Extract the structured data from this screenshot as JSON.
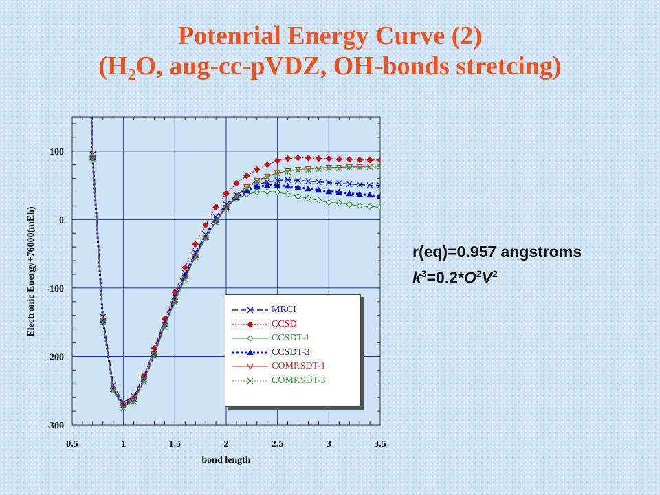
{
  "slide": {
    "title_line1": "Potenrial Energy Curve (2)",
    "title_line2_prefix": "(H",
    "title_line2_sub": "2",
    "title_line2_suffix": "O, aug-cc-pVDZ, OH-bonds stretcing)",
    "note_line1": "r(eq)=0.957 angstroms",
    "note_k": "k",
    "note_k_sup": "3",
    "note_eq": "=0.2*",
    "note_O": "O",
    "note_O_sup": "2",
    "note_V": "V",
    "note_V_sup": "2"
  },
  "chart_data": {
    "type": "line",
    "xlabel": "bond length",
    "ylabel": "Electronic Energy+76000(mEh)",
    "xlim": [
      0.5,
      3.5
    ],
    "ylim": [
      -300,
      150
    ],
    "xticks": [
      "0.5",
      "1",
      "1.5",
      "2",
      "2.5",
      "3",
      "3.5"
    ],
    "yticks": [
      "-300",
      "-200",
      "-100",
      "0",
      "100"
    ],
    "grid": true,
    "legend_position": "lower-right",
    "x": [
      0.7,
      0.8,
      0.9,
      1.0,
      1.1,
      1.2,
      1.3,
      1.4,
      1.5,
      1.6,
      1.7,
      1.8,
      1.9,
      2.0,
      2.1,
      2.2,
      2.3,
      2.4,
      2.5,
      2.6,
      2.7,
      2.8,
      2.9,
      3.0,
      3.1,
      3.2,
      3.3,
      3.4,
      3.5
    ],
    "series": [
      {
        "name": "MRCI",
        "color": "#1020c8",
        "values": [
          95,
          -142,
          -242,
          -268,
          -258,
          -228,
          -190,
          -148,
          -112,
          -78,
          -48,
          -22,
          4,
          22,
          36,
          45,
          51,
          55,
          57,
          58,
          57,
          56,
          55,
          54,
          53,
          52,
          51,
          50,
          50
        ]
      },
      {
        "name": "CCSD",
        "color": "#c81010",
        "values": [
          92,
          -146,
          -247,
          -270,
          -260,
          -229,
          -188,
          -145,
          -106,
          -70,
          -36,
          -8,
          18,
          38,
          53,
          64,
          73,
          80,
          86,
          89,
          90,
          90,
          89,
          89,
          88,
          88,
          87,
          87,
          87
        ]
      },
      {
        "name": "CCSDT-1",
        "color": "#209030",
        "values": [
          90,
          -148,
          -248,
          -272,
          -263,
          -234,
          -196,
          -153,
          -117,
          -83,
          -52,
          -26,
          -2,
          18,
          30,
          37,
          40,
          41,
          40,
          37,
          34,
          31,
          28,
          25,
          24,
          22,
          20,
          19,
          18
        ]
      },
      {
        "name": "CCSDT-3",
        "color": "#0010c0",
        "values": [
          90,
          -148,
          -248,
          -272,
          -263,
          -234,
          -196,
          -153,
          -117,
          -83,
          -52,
          -26,
          -2,
          18,
          32,
          42,
          48,
          50,
          50,
          49,
          47,
          45,
          43,
          41,
          40,
          38,
          37,
          36,
          34
        ]
      },
      {
        "name": "COMP.SDT-1",
        "color": "#c03020",
        "values": [
          90,
          -148,
          -249,
          -274,
          -264,
          -235,
          -197,
          -155,
          -120,
          -86,
          -54,
          -27,
          -3,
          18,
          35,
          48,
          57,
          63,
          68,
          71,
          73,
          74,
          75,
          76,
          76,
          77,
          77,
          78,
          78
        ]
      },
      {
        "name": "COMP.SDT-3",
        "color": "#40a040",
        "values": [
          88,
          -150,
          -250,
          -276,
          -266,
          -237,
          -199,
          -157,
          -121,
          -87,
          -55,
          -28,
          -4,
          16,
          33,
          46,
          55,
          62,
          67,
          70,
          72,
          73,
          74,
          75,
          75,
          76,
          76,
          77,
          77
        ]
      }
    ]
  }
}
